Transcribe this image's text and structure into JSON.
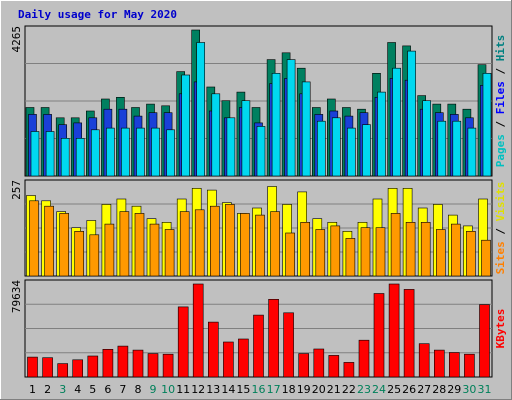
{
  "chart_data": {
    "type": "bar",
    "title": "Daily usage for May 2020",
    "categories": [
      "1",
      "2",
      "3",
      "4",
      "5",
      "6",
      "7",
      "8",
      "9",
      "10",
      "11",
      "12",
      "13",
      "14",
      "15",
      "16",
      "17",
      "18",
      "19",
      "20",
      "21",
      "22",
      "23",
      "24",
      "25",
      "26",
      "27",
      "28",
      "29",
      "30",
      "31"
    ],
    "weekend_days": [
      "3",
      "9",
      "10",
      "16",
      "17",
      "23",
      "24",
      "30",
      "31"
    ],
    "panels": [
      {
        "name": "hits-panel",
        "max_label": "4265",
        "ylim": [
          0,
          4265
        ],
        "right_label": [
          {
            "text": "Pages",
            "color": "#00c0c0"
          },
          {
            "text": " / ",
            "color": "#000000"
          },
          {
            "text": "Files",
            "color": "#0000ff"
          },
          {
            "text": " / ",
            "color": "#000000"
          },
          {
            "text": "Hits",
            "color": "#008080"
          }
        ],
        "series": [
          {
            "name": "Hits",
            "color": "#008060",
            "values": [
              2000,
              2000,
              1700,
              1700,
              1900,
              2250,
              2300,
              2000,
              2100,
              2050,
              3050,
              4265,
              2600,
              2200,
              2450,
              2000,
              3400,
              3600,
              3150,
              2000,
              2250,
              2000,
              1950,
              3000,
              3900,
              3800,
              2350,
              2100,
              2100,
              1950,
              3250
            ]
          },
          {
            "name": "Files",
            "color": "#1a40d8",
            "values": [
              1800,
              1800,
              1500,
              1550,
              1700,
              1950,
              1950,
              1750,
              1850,
              1850,
              2400,
              2750,
              1900,
              1700,
              2000,
              1550,
              2700,
              2850,
              2400,
              1800,
              1900,
              1750,
              1850,
              2300,
              2850,
              2800,
              1950,
              1850,
              1800,
              1700,
              2650
            ]
          },
          {
            "name": "Pages",
            "color": "#00d8f0",
            "values": [
              1300,
              1300,
              1100,
              1100,
              1350,
              1400,
              1400,
              1400,
              1400,
              1350,
              2950,
              3900,
              2400,
              1700,
              2200,
              1450,
              3000,
              3400,
              2750,
              1600,
              1700,
              1400,
              1500,
              2450,
              3150,
              3650,
              2200,
              1600,
              1600,
              1400,
              3000
            ]
          }
        ]
      },
      {
        "name": "visits-panel",
        "max_label": "257",
        "ylim": [
          0,
          257
        ],
        "right_label": [
          {
            "text": "Sites",
            "color": "#ff8000"
          },
          {
            "text": " / ",
            "color": "#000000"
          },
          {
            "text": "Visits",
            "color": "#e0e000"
          }
        ],
        "series": [
          {
            "name": "Visits",
            "color": "#ffff00",
            "values": [
              225,
              210,
              180,
              135,
              155,
              200,
              215,
              195,
              160,
              150,
              215,
              245,
              240,
              205,
              175,
              190,
              250,
              200,
              235,
              160,
              150,
              125,
              150,
              215,
              245,
              245,
              190,
              200,
              170,
              140,
              215
            ]
          },
          {
            "name": "Sites",
            "color": "#ff9900",
            "values": [
              210,
              195,
              175,
              125,
              115,
              145,
              180,
              175,
              145,
              130,
              180,
              185,
              195,
              200,
              175,
              170,
              180,
              120,
              150,
              130,
              140,
              105,
              135,
              135,
              175,
              150,
              150,
              130,
              145,
              125,
              100
            ]
          }
        ]
      },
      {
        "name": "kbytes-panel",
        "max_label": "79634",
        "ylim": [
          0,
          79634
        ],
        "right_label": [
          {
            "text": "KBytes",
            "color": "#ff0000"
          }
        ],
        "series": [
          {
            "name": "KBytes",
            "color": "#ff0000",
            "values": [
              17000,
              16500,
              11500,
              14700,
              18000,
              23700,
              26500,
              23000,
              20000,
              19500,
              60000,
              79634,
              47000,
              30000,
              32500,
              53000,
              66500,
              55000,
              20000,
              24000,
              18500,
              12500,
              31500,
              71500,
              79634,
              75000,
              28500,
              23000,
              21000,
              19500,
              62000
            ]
          }
        ]
      }
    ]
  }
}
